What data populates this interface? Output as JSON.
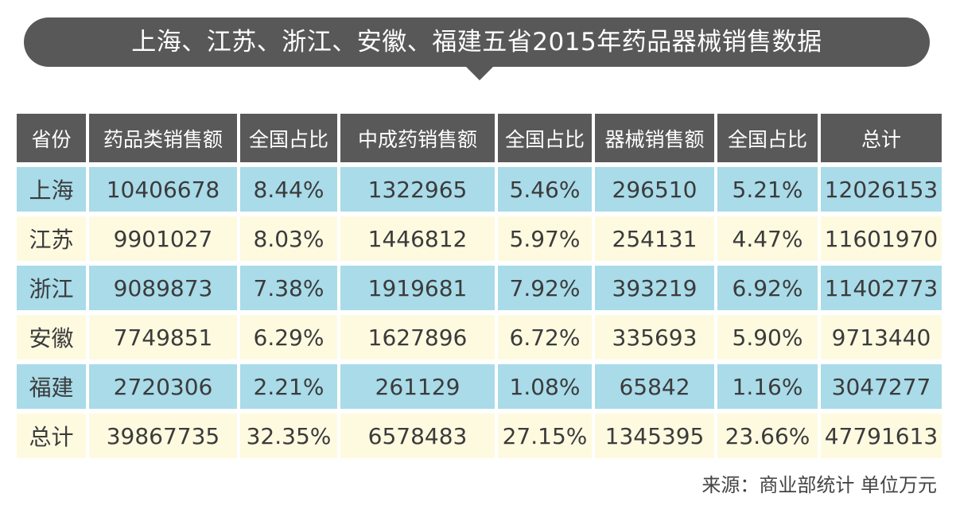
{
  "title": "上海、江苏、浙江、安徽、福建五省2015年药品器械销售数据",
  "source": "来源：商业部统计 单位万元",
  "colors": {
    "header_bg": "#595959",
    "row_blue": "#a9dbe9",
    "row_cream": "#fefae0",
    "title_bg": "#585858"
  },
  "chart_data": {
    "type": "table",
    "title": "上海、江苏、浙江、安徽、福建五省2015年药品器械销售数据",
    "columns": [
      "省份",
      "药品类销售额",
      "全国占比",
      "中成药销售额",
      "全国占比",
      "器械销售额",
      "全国占比",
      "总计"
    ],
    "rows": [
      [
        "上海",
        "10406678",
        "8.44%",
        "1322965",
        "5.46%",
        "296510",
        "5.21%",
        "12026153"
      ],
      [
        "江苏",
        "9901027",
        "8.03%",
        "1446812",
        "5.97%",
        "254131",
        "4.47%",
        "11601970"
      ],
      [
        "浙江",
        "9089873",
        "7.38%",
        "1919681",
        "7.92%",
        "393219",
        "6.92%",
        "11402773"
      ],
      [
        "安徽",
        "7749851",
        "6.29%",
        "1627896",
        "6.72%",
        "335693",
        "5.90%",
        "9713440"
      ],
      [
        "福建",
        "2720306",
        "2.21%",
        "261129",
        "1.08%",
        "65842",
        "1.16%",
        "3047277"
      ],
      [
        "总计",
        "39867735",
        "32.35%",
        "6578483",
        "27.15%",
        "1345395",
        "23.66%",
        "47791613"
      ]
    ],
    "unit": "万元"
  }
}
